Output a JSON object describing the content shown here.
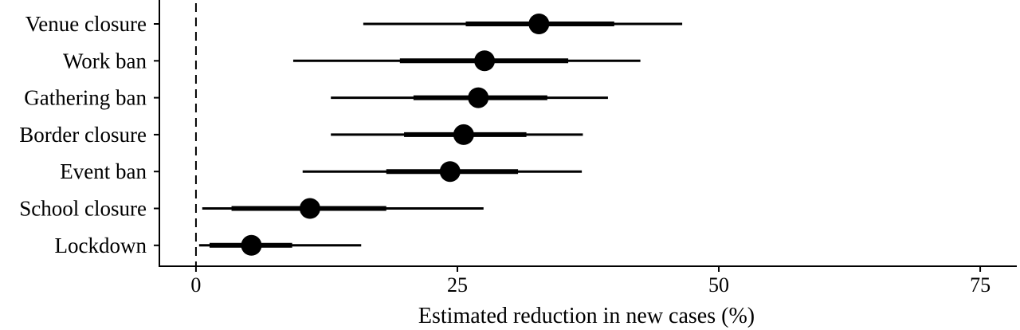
{
  "chart_data": {
    "type": "forest",
    "xlabel": "Estimated reduction in new cases (%)",
    "ylabel": "",
    "xlim": [
      -3.5,
      78.5
    ],
    "xticks": [
      0,
      25,
      50,
      75
    ],
    "reference_line": 0,
    "color": "#000000",
    "categories": [
      "Venue closure",
      "Work ban",
      "Gathering ban",
      "Border closure",
      "Event ban",
      "School closure",
      "Lockdown"
    ],
    "estimates": [
      32.8,
      27.6,
      27.0,
      25.6,
      24.3,
      10.9,
      5.3
    ],
    "inner_intervals": [
      [
        25.8,
        40.0
      ],
      [
        19.5,
        35.6
      ],
      [
        20.8,
        33.6
      ],
      [
        19.9,
        31.6
      ],
      [
        18.2,
        30.8
      ],
      [
        3.4,
        18.2
      ],
      [
        1.3,
        9.2
      ]
    ],
    "outer_intervals": [
      [
        16.0,
        46.5
      ],
      [
        9.3,
        42.5
      ],
      [
        12.9,
        39.4
      ],
      [
        12.9,
        37.0
      ],
      [
        10.2,
        36.9
      ],
      [
        0.6,
        27.5
      ],
      [
        0.3,
        15.8
      ]
    ]
  }
}
